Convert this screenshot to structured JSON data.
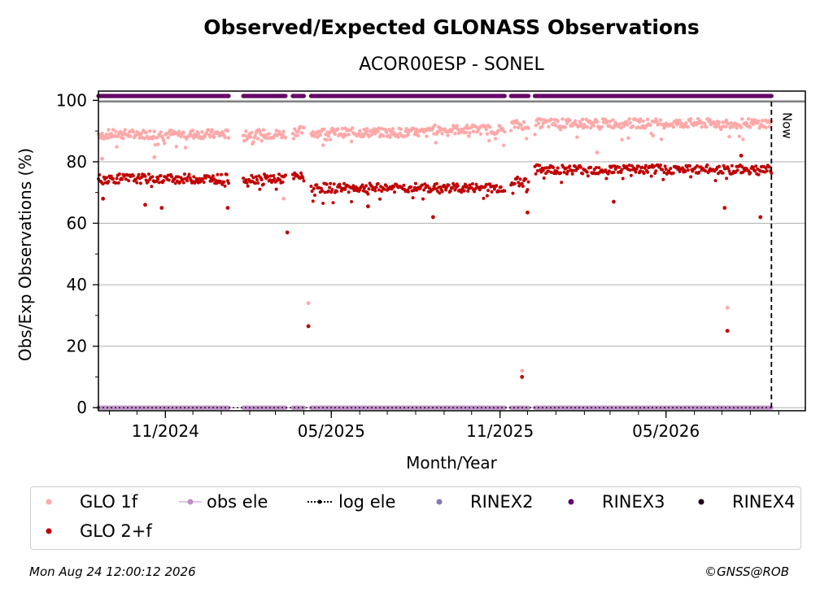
{
  "chart_data": {
    "type": "scatter",
    "title": "Observed/Expected GLONASS Observations",
    "subtitle": "ACOR00ESP - SONEL",
    "xlabel": "Month/Year",
    "ylabel": "Obs/Exp Observations (%)",
    "ylim": [
      -1,
      103
    ],
    "xlim": [
      "2024-08-20",
      "2026-09-30"
    ],
    "yticks": [
      0,
      20,
      40,
      60,
      80,
      100
    ],
    "xticks": [
      {
        "date": "2024-11-01",
        "label": "11/2024"
      },
      {
        "date": "2025-05-01",
        "label": "05/2025"
      },
      {
        "date": "2025-11-01",
        "label": "11/2025"
      },
      {
        "date": "2026-05-01",
        "label": "05/2026"
      }
    ],
    "now_label": "Now",
    "now_date": "2026-08-24",
    "grid": "horizontal",
    "legend_position": "bottom",
    "data_gaps": [
      [
        "2025-01-10",
        "2025-01-24"
      ],
      [
        "2025-03-13",
        "2025-03-19"
      ],
      [
        "2025-04-02",
        "2025-04-08"
      ],
      [
        "2025-11-07",
        "2025-11-12"
      ],
      [
        "2025-12-03",
        "2025-12-08"
      ]
    ],
    "series": [
      {
        "name": "GLO 1f",
        "color": "#ffa8a8",
        "base": 89.5,
        "segments": [
          {
            "from": "2024-08-20",
            "to": "2025-03-12",
            "level": 89
          },
          {
            "from": "2025-03-20",
            "to": "2025-04-01",
            "level": 90
          },
          {
            "from": "2025-04-09",
            "to": "2025-08-15",
            "level": 89.5
          },
          {
            "from": "2025-08-16",
            "to": "2025-11-06",
            "level": 90.5
          },
          {
            "from": "2025-11-13",
            "to": "2025-12-02",
            "level": 92
          },
          {
            "from": "2025-12-09",
            "to": "2026-08-24",
            "level": 92.5
          }
        ],
        "outliers": [
          {
            "date": "2024-08-24",
            "value": 81
          },
          {
            "date": "2024-10-20",
            "value": 81.5
          },
          {
            "date": "2025-03-10",
            "value": 68
          },
          {
            "date": "2025-04-06",
            "value": 34
          },
          {
            "date": "2025-11-25",
            "value": 12
          },
          {
            "date": "2026-07-07",
            "value": 32.5
          },
          {
            "date": "2026-02-15",
            "value": 83
          }
        ]
      },
      {
        "name": "GLO 2+f",
        "color": "#c00000",
        "segments": [
          {
            "from": "2024-08-20",
            "to": "2025-03-12",
            "level": 74.5
          },
          {
            "from": "2025-03-20",
            "to": "2025-04-01",
            "level": 75
          },
          {
            "from": "2025-04-09",
            "to": "2025-11-06",
            "level": 71.5
          },
          {
            "from": "2025-11-13",
            "to": "2025-12-02",
            "level": 73.5
          },
          {
            "from": "2025-12-09",
            "to": "2026-08-24",
            "level": 77.5
          }
        ],
        "outliers": [
          {
            "date": "2024-08-25",
            "value": 68
          },
          {
            "date": "2024-10-10",
            "value": 66
          },
          {
            "date": "2024-10-28",
            "value": 65
          },
          {
            "date": "2025-01-08",
            "value": 65
          },
          {
            "date": "2025-03-14",
            "value": 57
          },
          {
            "date": "2025-04-06",
            "value": 26.5
          },
          {
            "date": "2025-06-10",
            "value": 65.5
          },
          {
            "date": "2025-08-20",
            "value": 62
          },
          {
            "date": "2025-11-25",
            "value": 10
          },
          {
            "date": "2025-12-01",
            "value": 63.5
          },
          {
            "date": "2026-03-05",
            "value": 67
          },
          {
            "date": "2026-07-07",
            "value": 25
          },
          {
            "date": "2026-07-04",
            "value": 65
          },
          {
            "date": "2026-08-12",
            "value": 62
          },
          {
            "date": "2026-07-22",
            "value": 82
          }
        ]
      }
    ],
    "legend": [
      {
        "name": "GLO 1f",
        "color": "#ffa8a8",
        "style": "dot"
      },
      {
        "name": "obs ele",
        "color": "#c090c8",
        "style": "line-dot"
      },
      {
        "name": "log ele",
        "color": "#000000",
        "style": "dotted-dot"
      },
      {
        "name": "RINEX2",
        "color": "#8878b8",
        "style": "dot"
      },
      {
        "name": "RINEX3",
        "color": "#660066",
        "style": "dot"
      },
      {
        "name": "RINEX4",
        "color": "#22001a",
        "style": "dot"
      },
      {
        "name": "GLO 2+f",
        "color": "#c00000",
        "style": "dot"
      }
    ],
    "rinex3_color": "#660066",
    "obs_ele_color": "#c090c8"
  },
  "footer": {
    "timestamp": "Mon Aug 24 12:00:12 2026",
    "credit": "©GNSS@ROB"
  }
}
